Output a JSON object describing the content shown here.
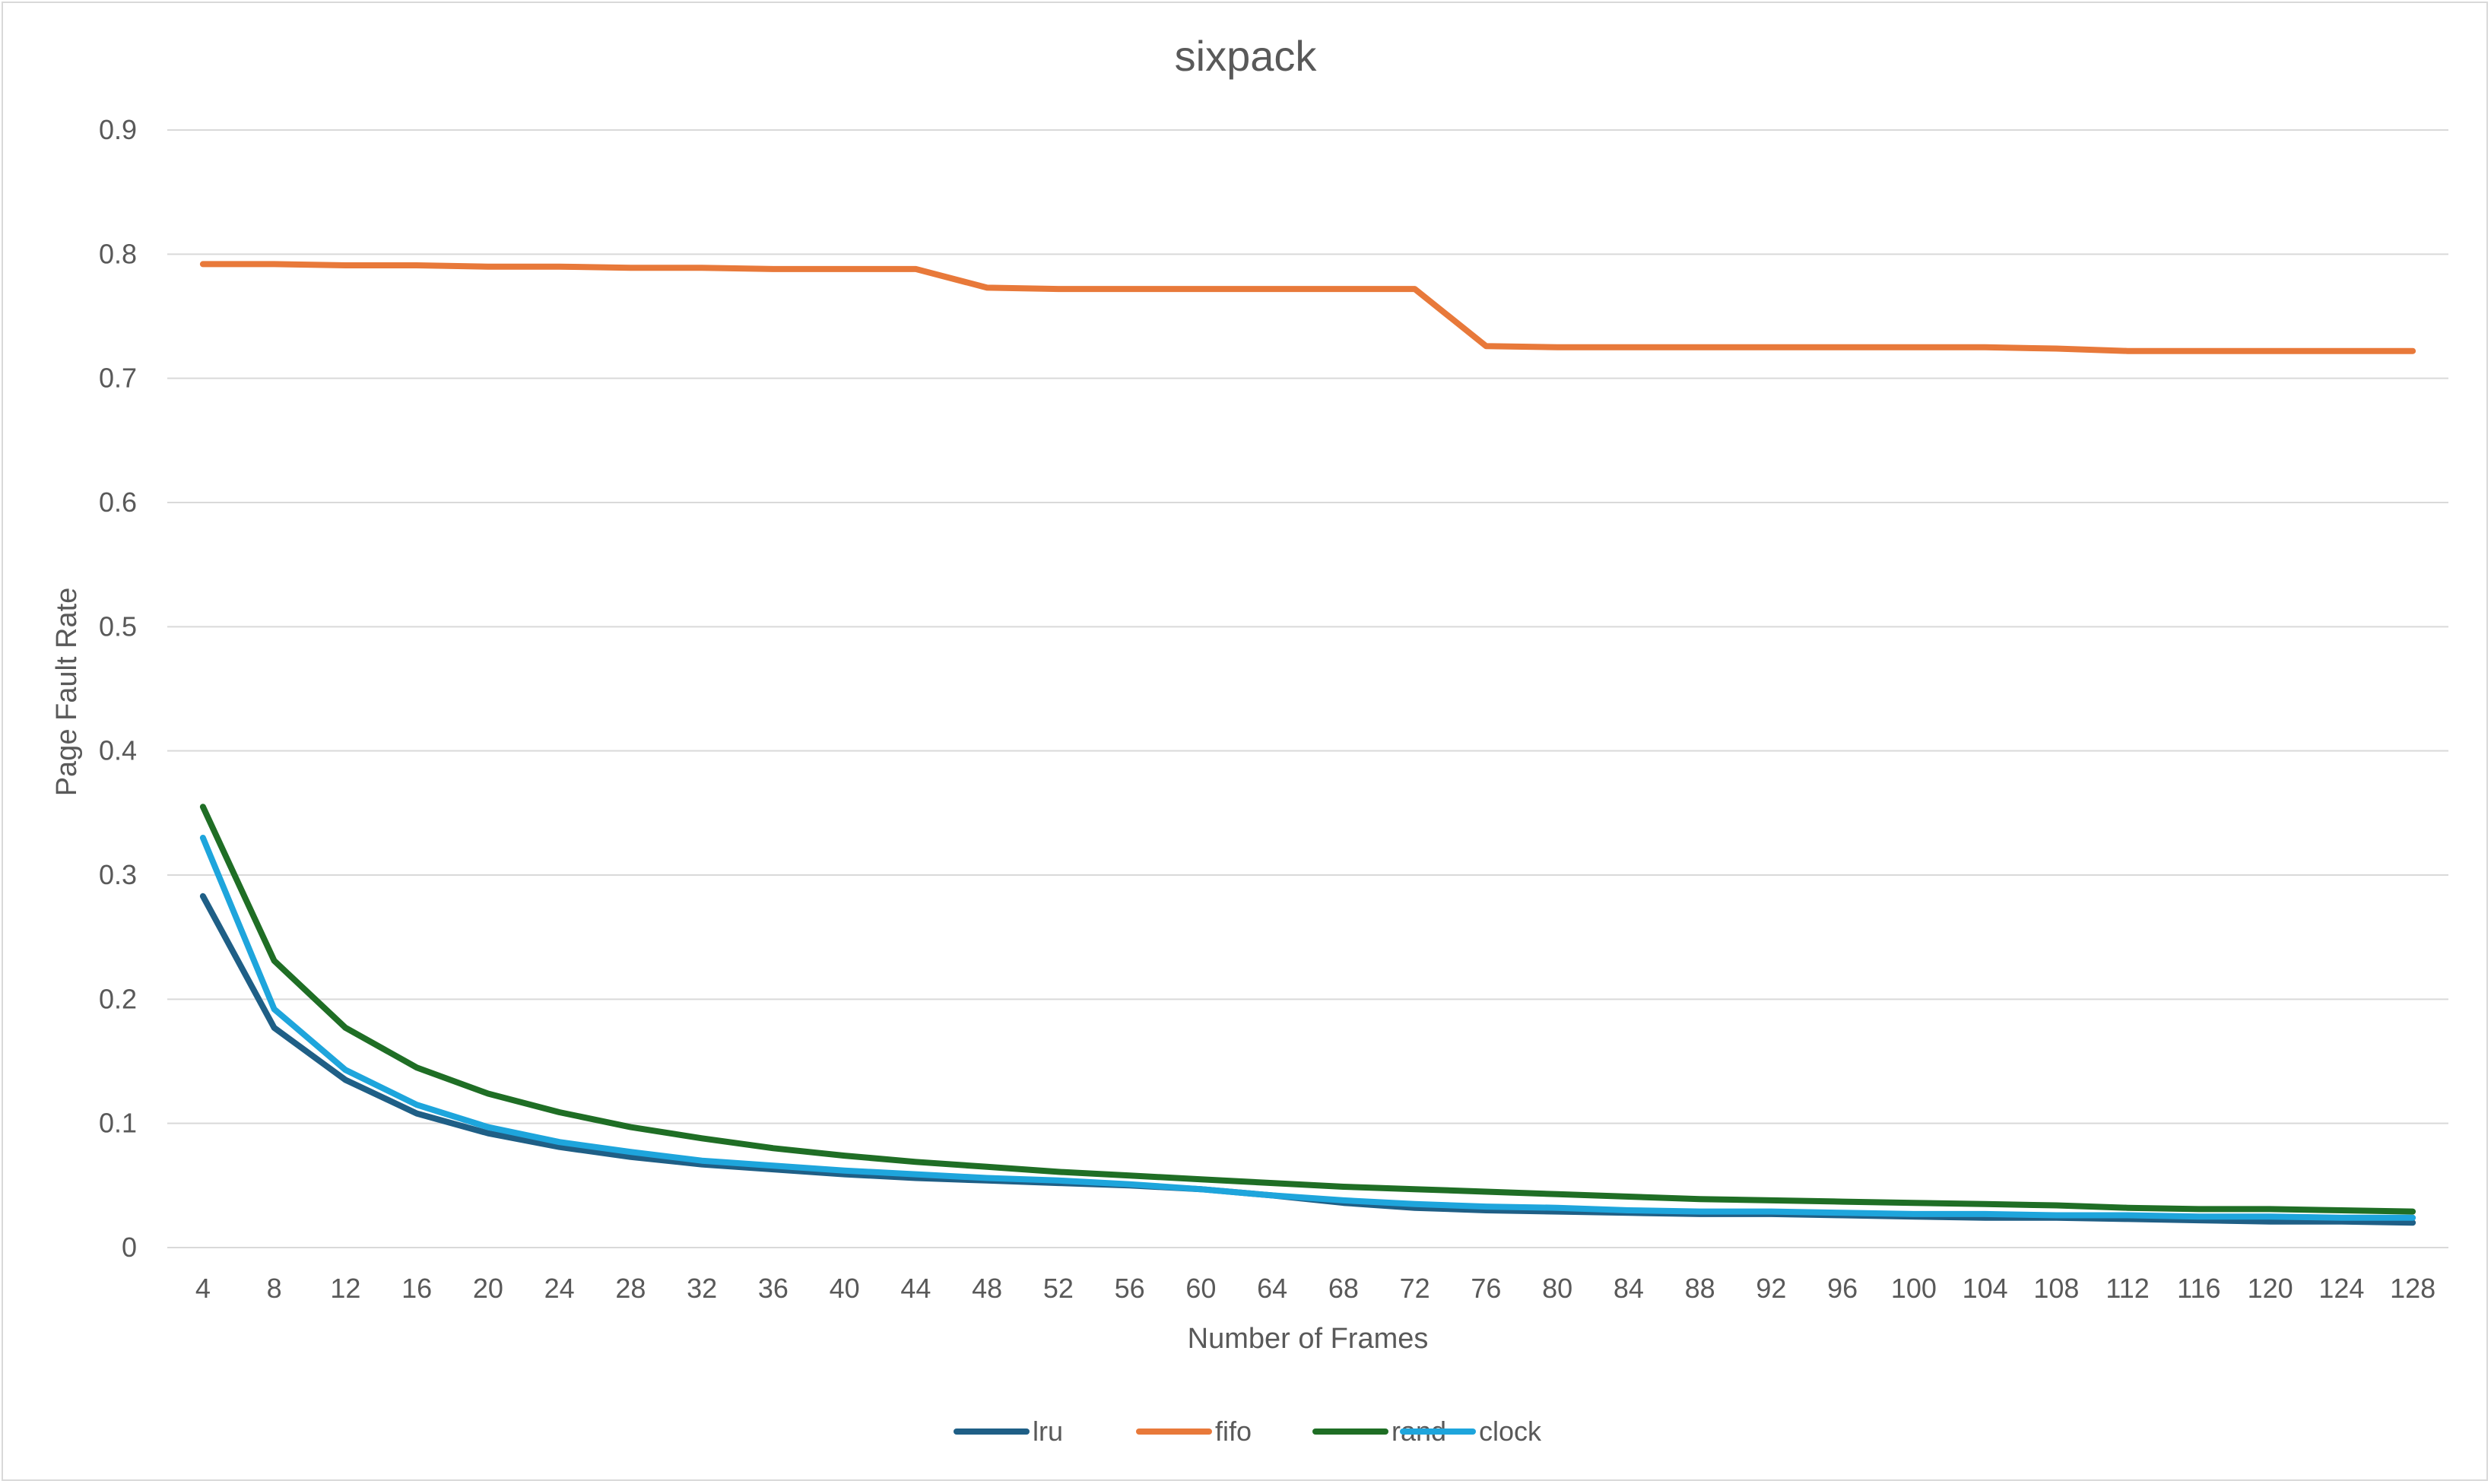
{
  "chart_data": {
    "type": "line",
    "title": "sixpack",
    "xlabel": "Number of Frames",
    "ylabel": "Page Fault Rate",
    "ylim": [
      0,
      0.9
    ],
    "yticks": [
      "0",
      "0.1",
      "0.2",
      "0.3",
      "0.4",
      "0.5",
      "0.6",
      "0.7",
      "0.8",
      "0.9"
    ],
    "categories": [
      "4",
      "8",
      "12",
      "16",
      "20",
      "24",
      "28",
      "32",
      "36",
      "40",
      "44",
      "48",
      "52",
      "56",
      "60",
      "64",
      "68",
      "72",
      "76",
      "80",
      "84",
      "88",
      "92",
      "96",
      "100",
      "104",
      "108",
      "112",
      "116",
      "120",
      "124",
      "128"
    ],
    "grid": true,
    "legend_position": "bottom",
    "series": [
      {
        "name": "lru",
        "color": "#1f5f86",
        "values": [
          0.283,
          0.177,
          0.135,
          0.108,
          0.092,
          0.081,
          0.073,
          0.067,
          0.063,
          0.059,
          0.056,
          0.054,
          0.052,
          0.05,
          0.047,
          0.042,
          0.036,
          0.032,
          0.03,
          0.029,
          0.028,
          0.027,
          0.027,
          0.026,
          0.025,
          0.024,
          0.024,
          0.023,
          0.022,
          0.021,
          0.021,
          0.02
        ]
      },
      {
        "name": "fifo",
        "color": "#e8793a",
        "values": [
          0.792,
          0.792,
          0.791,
          0.791,
          0.79,
          0.79,
          0.789,
          0.789,
          0.788,
          0.788,
          0.788,
          0.773,
          0.772,
          0.772,
          0.772,
          0.772,
          0.772,
          0.772,
          0.726,
          0.725,
          0.725,
          0.725,
          0.725,
          0.725,
          0.725,
          0.725,
          0.724,
          0.722,
          0.722,
          0.722,
          0.722,
          0.722
        ]
      },
      {
        "name": "rand",
        "color": "#1f6e25",
        "values": [
          0.355,
          0.231,
          0.177,
          0.145,
          0.124,
          0.109,
          0.097,
          0.088,
          0.08,
          0.074,
          0.069,
          0.065,
          0.061,
          0.058,
          0.055,
          0.052,
          0.049,
          0.047,
          0.045,
          0.043,
          0.041,
          0.039,
          0.038,
          0.037,
          0.036,
          0.035,
          0.034,
          0.032,
          0.031,
          0.031,
          0.03,
          0.029
        ]
      },
      {
        "name": "clock",
        "color": "#1ea5dc",
        "values": [
          0.33,
          0.192,
          0.143,
          0.115,
          0.097,
          0.085,
          0.077,
          0.07,
          0.066,
          0.062,
          0.059,
          0.056,
          0.054,
          0.051,
          0.047,
          0.042,
          0.038,
          0.035,
          0.033,
          0.032,
          0.03,
          0.029,
          0.029,
          0.028,
          0.027,
          0.027,
          0.026,
          0.026,
          0.025,
          0.025,
          0.024,
          0.024
        ]
      }
    ]
  }
}
